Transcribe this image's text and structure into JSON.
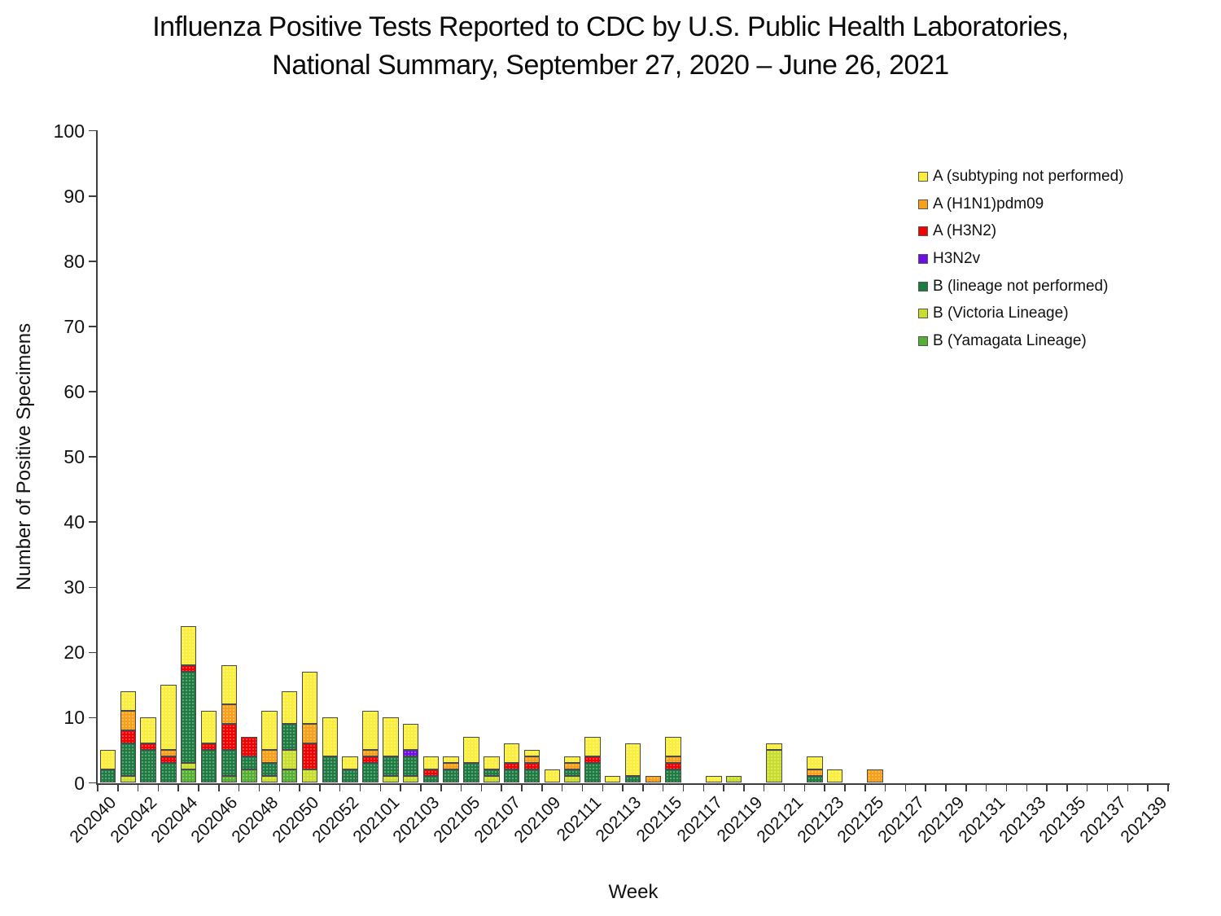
{
  "title": {
    "line1": "Influenza Positive Tests Reported to CDC by U.S. Public Health Laboratories,",
    "line2": "National Summary, September 27, 2020 – June 26, 2021"
  },
  "y_axis": {
    "label": "Number of Positive Specimens",
    "ticks": [
      "0",
      "10",
      "20",
      "30",
      "40",
      "50",
      "60",
      "70",
      "80",
      "90",
      "100"
    ],
    "min": 0,
    "max": 100
  },
  "x_axis": {
    "label": "Week",
    "tick_labels": [
      "202040",
      "202042",
      "202044",
      "202046",
      "202048",
      "202050",
      "202052",
      "202101",
      "202103",
      "202105",
      "202107",
      "202109",
      "202111",
      "202113",
      "202115",
      "202117",
      "202119",
      "202121",
      "202123",
      "202125",
      "202127",
      "202129",
      "202131",
      "202133",
      "202135",
      "202137",
      "202139"
    ]
  },
  "legend": [
    {
      "label": "A (subtyping not performed)",
      "color": "#FCEE3C"
    },
    {
      "label": "A (H1N1)pdm09",
      "color": "#F9A01B"
    },
    {
      "label": "A (H3N2)",
      "color": "#F40000"
    },
    {
      "label": "H3N2v",
      "color": "#6D0EE8"
    },
    {
      "label": "B (lineage not performed)",
      "color": "#1E7B41"
    },
    {
      "label": "B (Victoria Lineage)",
      "color": "#C9DD2F"
    },
    {
      "label": "B (Yamagata Lineage)",
      "color": "#55AF33"
    }
  ],
  "chart_data": {
    "type": "bar",
    "stacked": true,
    "title": "Influenza Positive Tests Reported to CDC by U.S. Public Health Laboratories, National Summary, September 27, 2020 – June 26, 2021",
    "xlabel": "Week",
    "ylabel": "Number of Positive Specimens",
    "ylim": [
      0,
      100
    ],
    "grid": false,
    "legend_position": "upper right",
    "categories": [
      "202040",
      "202041",
      "202042",
      "202043",
      "202044",
      "202045",
      "202046",
      "202047",
      "202048",
      "202049",
      "202050",
      "202051",
      "202052",
      "202053",
      "202101",
      "202102",
      "202103",
      "202104",
      "202105",
      "202106",
      "202107",
      "202108",
      "202109",
      "202110",
      "202111",
      "202112",
      "202113",
      "202114",
      "202115",
      "202116",
      "202117",
      "202118",
      "202119",
      "202120",
      "202121",
      "202122",
      "202123",
      "202124",
      "202125",
      "202126",
      "202127",
      "202128",
      "202129",
      "202130",
      "202131",
      "202132",
      "202133",
      "202134",
      "202135",
      "202136",
      "202137",
      "202138",
      "202139"
    ],
    "stack_order_bottom_to_top": [
      "B (Yamagata Lineage)",
      "B (Victoria Lineage)",
      "B (lineage not performed)",
      "H3N2v",
      "A (H3N2)",
      "A (H1N1)pdm09",
      "A (subtyping not performed)"
    ],
    "series": [
      {
        "name": "A (subtyping not performed)",
        "color": "#FCEE3C",
        "values": [
          3,
          3,
          4,
          10,
          6,
          5,
          6,
          0,
          6,
          5,
          8,
          6,
          2,
          6,
          6,
          4,
          2,
          1,
          4,
          2,
          3,
          1,
          2,
          1,
          3,
          1,
          5,
          0,
          3,
          0,
          1,
          0,
          0,
          1,
          0,
          2,
          2,
          0,
          0,
          0,
          0,
          0,
          0,
          0,
          0,
          0,
          0,
          0,
          0,
          0,
          0,
          0,
          0
        ]
      },
      {
        "name": "A (H1N1)pdm09",
        "color": "#F9A01B",
        "values": [
          0,
          3,
          0,
          1,
          0,
          0,
          3,
          0,
          2,
          0,
          3,
          0,
          0,
          1,
          0,
          0,
          0,
          1,
          0,
          0,
          0,
          1,
          0,
          1,
          0,
          0,
          0,
          1,
          1,
          0,
          0,
          0,
          0,
          0,
          0,
          1,
          0,
          0,
          2,
          0,
          0,
          0,
          0,
          0,
          0,
          0,
          0,
          0,
          0,
          0,
          0,
          0,
          0
        ]
      },
      {
        "name": "A (H3N2)",
        "color": "#F40000",
        "values": [
          0,
          2,
          1,
          1,
          1,
          1,
          4,
          3,
          0,
          0,
          4,
          0,
          0,
          1,
          0,
          0,
          1,
          0,
          0,
          0,
          1,
          1,
          0,
          0,
          1,
          0,
          0,
          0,
          1,
          0,
          0,
          0,
          0,
          0,
          0,
          0,
          0,
          0,
          0,
          0,
          0,
          0,
          0,
          0,
          0,
          0,
          0,
          0,
          0,
          0,
          0,
          0,
          0
        ]
      },
      {
        "name": "H3N2v",
        "color": "#6D0EE8",
        "values": [
          0,
          0,
          0,
          0,
          0,
          0,
          0,
          0,
          0,
          0,
          0,
          0,
          0,
          0,
          0,
          1,
          0,
          0,
          0,
          0,
          0,
          0,
          0,
          0,
          0,
          0,
          0,
          0,
          0,
          0,
          0,
          0,
          0,
          0,
          0,
          0,
          0,
          0,
          0,
          0,
          0,
          0,
          0,
          0,
          0,
          0,
          0,
          0,
          0,
          0,
          0,
          0,
          0
        ]
      },
      {
        "name": "B (lineage not performed)",
        "color": "#1E7B41",
        "values": [
          2,
          5,
          5,
          3,
          14,
          5,
          4,
          2,
          2,
          4,
          0,
          4,
          2,
          3,
          3,
          3,
          1,
          2,
          3,
          1,
          2,
          2,
          0,
          1,
          3,
          0,
          1,
          0,
          2,
          0,
          0,
          0,
          0,
          0,
          0,
          1,
          0,
          0,
          0,
          0,
          0,
          0,
          0,
          0,
          0,
          0,
          0,
          0,
          0,
          0,
          0,
          0,
          0
        ]
      },
      {
        "name": "B (Victoria Lineage)",
        "color": "#C9DD2F",
        "values": [
          0,
          1,
          0,
          0,
          1,
          0,
          0,
          0,
          1,
          3,
          2,
          0,
          0,
          0,
          1,
          1,
          0,
          0,
          0,
          1,
          0,
          0,
          0,
          1,
          0,
          0,
          0,
          0,
          0,
          0,
          0,
          1,
          0,
          5,
          0,
          0,
          0,
          0,
          0,
          0,
          0,
          0,
          0,
          0,
          0,
          0,
          0,
          0,
          0,
          0,
          0,
          0,
          0
        ]
      },
      {
        "name": "B (Yamagata Lineage)",
        "color": "#55AF33",
        "values": [
          0,
          0,
          0,
          0,
          2,
          0,
          1,
          2,
          0,
          2,
          0,
          0,
          0,
          0,
          0,
          0,
          0,
          0,
          0,
          0,
          0,
          0,
          0,
          0,
          0,
          0,
          0,
          0,
          0,
          0,
          0,
          0,
          0,
          0,
          0,
          0,
          0,
          0,
          0,
          0,
          0,
          0,
          0,
          0,
          0,
          0,
          0,
          0,
          0,
          0,
          0,
          0,
          0
        ]
      }
    ]
  }
}
